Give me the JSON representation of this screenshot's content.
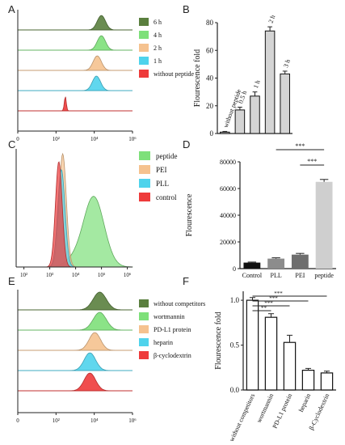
{
  "panel_labels": [
    "A",
    "B",
    "C",
    "D",
    "E",
    "F"
  ],
  "chart_data": [
    {
      "panel": "A",
      "type": "histogram-overlay",
      "xlabel": "",
      "ylabel": "",
      "x_scale": "log",
      "xticks": [
        "0",
        "10²",
        "10⁴",
        "10⁶"
      ],
      "legend": [
        "6 h",
        "4 h",
        "2 h",
        "1 h",
        "without peptide"
      ],
      "series": [
        {
          "name": "6 h",
          "color": "#5a7f3e",
          "peak_log": 4.6,
          "width": 0.25
        },
        {
          "name": "4 h",
          "color": "#7ee07a",
          "peak_log": 4.6,
          "width": 0.25
        },
        {
          "name": "2 h",
          "color": "#f5c28f",
          "peak_log": 4.35,
          "width": 0.25
        },
        {
          "name": "1 h",
          "color": "#4fd3ec",
          "peak_log": 4.3,
          "width": 0.25
        },
        {
          "name": "without peptide",
          "color": "#ee3b3b",
          "peak_log": 2.4,
          "width": 0.06
        }
      ]
    },
    {
      "panel": "B",
      "type": "bar",
      "ylabel": "Flourescence fold",
      "ylim": [
        0,
        80
      ],
      "yticks": [
        0,
        20,
        40,
        60,
        80
      ],
      "categories": [
        "without peptide",
        "0.5 h",
        "1 h",
        "2 h",
        "3 h"
      ],
      "values": [
        1,
        17,
        27,
        74,
        43
      ],
      "errors": [
        0.5,
        2,
        3,
        3,
        2
      ]
    },
    {
      "panel": "C",
      "type": "histogram-overlay",
      "x_scale": "log",
      "xticks": [
        "10²",
        "10³",
        "10⁴",
        "10⁵",
        "10⁶"
      ],
      "legend": [
        "peptide",
        "PEI",
        "PLL",
        "control"
      ],
      "series": [
        {
          "name": "peptide",
          "color": "#7ee07a",
          "peak_log": 4.7,
          "width": 0.4,
          "height": 0.62
        },
        {
          "name": "PEI",
          "color": "#f5c28f",
          "peak_log": 3.5,
          "width": 0.14,
          "height": 1.0
        },
        {
          "name": "PLL",
          "color": "#4fd3ec",
          "peak_log": 3.45,
          "width": 0.14,
          "height": 0.86
        },
        {
          "name": "control",
          "color": "#ee3b3b",
          "peak_log": 3.35,
          "width": 0.13,
          "height": 0.93
        }
      ]
    },
    {
      "panel": "D",
      "type": "bar",
      "ylabel": "Flourescence",
      "ylim": [
        0,
        80000
      ],
      "yticks": [
        0,
        20000,
        40000,
        60000,
        80000
      ],
      "categories": [
        "Control",
        "PLL",
        "PEI",
        "peptide"
      ],
      "values": [
        4500,
        7500,
        10500,
        65000
      ],
      "errors": [
        400,
        600,
        900,
        1800
      ],
      "colors": [
        "#111111",
        "#8c8c8c",
        "#6e6e6e",
        "#cfcfcf"
      ],
      "significance": [
        [
          "PLL",
          "peptide",
          "***"
        ],
        [
          "PEI",
          "peptide",
          "***"
        ]
      ]
    },
    {
      "panel": "E",
      "type": "histogram-overlay",
      "x_scale": "log",
      "xticks": [
        "0",
        "10²",
        "10⁴",
        "10⁶"
      ],
      "legend": [
        "without competitors",
        "wortmannin",
        "PD-L1 protein",
        "heparin",
        "β-cyclodextrin"
      ],
      "series": [
        {
          "name": "without competitors",
          "color": "#5a7f3e",
          "peak_log": 4.5,
          "width": 0.4
        },
        {
          "name": "wortmannin",
          "color": "#7ee07a",
          "peak_log": 4.5,
          "width": 0.4
        },
        {
          "name": "PD-L1 protein",
          "color": "#f5c28f",
          "peak_log": 4.2,
          "width": 0.35
        },
        {
          "name": "heparin",
          "color": "#4fd3ec",
          "peak_log": 3.9,
          "width": 0.35
        },
        {
          "name": "β-cyclodextrin",
          "color": "#ee3b3b",
          "peak_log": 3.9,
          "width": 0.35
        }
      ]
    },
    {
      "panel": "F",
      "type": "bar",
      "ylabel": "Flourescence fold",
      "ylim": [
        0,
        1.1
      ],
      "yticks": [
        "0.0",
        "0.5",
        "1.0"
      ],
      "categories": [
        "without competitors",
        "wortmannin",
        "PD-L1 protein",
        "heparin",
        "β-Cyclodextrin"
      ],
      "values": [
        1.0,
        0.81,
        0.53,
        0.22,
        0.19
      ],
      "errors": [
        0.03,
        0.04,
        0.08,
        0.02,
        0.02
      ],
      "significance": [
        [
          "without competitors",
          "wortmannin",
          "**"
        ],
        [
          "without competitors",
          "PD-L1 protein",
          "***"
        ],
        [
          "without competitors",
          "heparin",
          "***"
        ],
        [
          "without competitors",
          "β-Cyclodextrin",
          "***"
        ]
      ]
    }
  ]
}
